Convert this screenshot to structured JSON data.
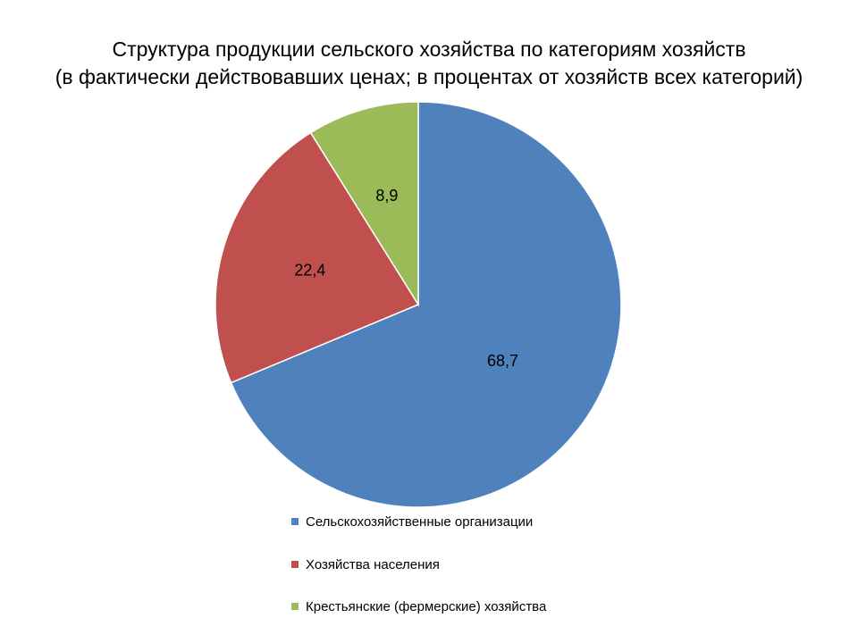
{
  "chart_data": {
    "type": "pie",
    "title": [
      "Структура продукции сельского хозяйства по категориям хозяйств",
      "(в фактически действовавших ценах; в процентах от хозяйств всех категорий)"
    ],
    "slices": [
      {
        "label": "Сельскохозяйственные организации",
        "value": 68.7,
        "value_text": "68,7",
        "color": "#4F81BD"
      },
      {
        "label": "Хозяйства населения",
        "value": 22.4,
        "value_text": "22,4",
        "color": "#C0504D"
      },
      {
        "label": "Крестьянские (фермерские) хозяйства",
        "value": 8.9,
        "value_text": "8,9",
        "color": "#9BBB59"
      }
    ],
    "legend_position": "bottom"
  }
}
